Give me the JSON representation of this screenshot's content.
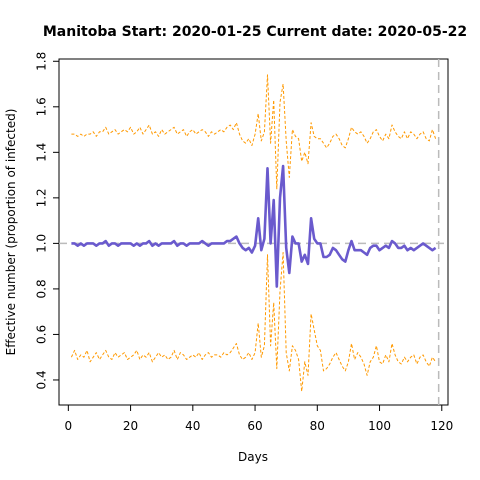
{
  "chart_data": {
    "type": "line",
    "title": "Manitoba Start:  2020-01-25   Current date:  2020-05-22",
    "xlabel": "Days",
    "ylabel": "Effective number (proportion of infected)",
    "xlim": [
      -3,
      122
    ],
    "ylim": [
      0.29,
      1.81
    ],
    "x_ticks": [
      0,
      20,
      40,
      60,
      80,
      100,
      120
    ],
    "y_ticks": [
      0.4,
      0.6,
      0.8,
      1.0,
      1.2,
      1.4,
      1.6,
      1.8
    ],
    "grid": false,
    "reference_line_y": 1.0,
    "current_day_line_x": 119,
    "colors": {
      "estimate": "#6a5acd",
      "bounds": "#ff9900",
      "reference": "#bbbbbb"
    },
    "series": [
      {
        "x": [
          1,
          2,
          3,
          4,
          5,
          6,
          7,
          8,
          9,
          10,
          11,
          12,
          13,
          14,
          15,
          16,
          17,
          18,
          19,
          20,
          21,
          22,
          23,
          24,
          25,
          26,
          27,
          28,
          29,
          30,
          31,
          32,
          33,
          34,
          35,
          36,
          37,
          38,
          39,
          40,
          41,
          42,
          43,
          44,
          45,
          46,
          47,
          48,
          49,
          50,
          51,
          52,
          53,
          54,
          55,
          56,
          57,
          58,
          59,
          60,
          61,
          62,
          63,
          64,
          65,
          66,
          67,
          68,
          69,
          70,
          71,
          72,
          73,
          74,
          75,
          76,
          77,
          78,
          79,
          80,
          81,
          82,
          83,
          84,
          85,
          86,
          87,
          88,
          89,
          90,
          91,
          92,
          93,
          94,
          95,
          96,
          97,
          98,
          99,
          100,
          101,
          102,
          103,
          104,
          105,
          106,
          107,
          108,
          109,
          110,
          111,
          112,
          113,
          114,
          115,
          116,
          117,
          118
        ],
        "values": [
          1.0,
          1.0,
          0.99,
          1.0,
          0.99,
          1.0,
          1.0,
          1.0,
          0.99,
          1.0,
          1.0,
          1.01,
          0.99,
          1.0,
          1.0,
          0.99,
          1.0,
          1.0,
          1.0,
          1.0,
          0.99,
          1.0,
          0.99,
          1.0,
          1.0,
          1.01,
          0.99,
          1.0,
          0.99,
          1.0,
          1.0,
          1.0,
          1.0,
          1.01,
          0.99,
          1.0,
          1.0,
          0.99,
          1.0,
          1.0,
          1.0,
          1.0,
          1.01,
          1.0,
          0.99,
          1.0,
          1.0,
          1.0,
          1.0,
          1.0,
          1.01,
          1.01,
          1.02,
          1.03,
          1.0,
          0.98,
          0.97,
          0.98,
          0.96,
          0.99,
          1.11,
          0.97,
          1.02,
          1.33,
          1.0,
          1.19,
          0.81,
          1.2,
          1.34,
          0.98,
          0.87,
          1.03,
          1.0,
          1.0,
          0.92,
          0.95,
          0.91,
          1.11,
          1.02,
          1.0,
          1.0,
          0.94,
          0.94,
          0.95,
          0.98,
          0.97,
          0.95,
          0.93,
          0.92,
          0.97,
          1.01,
          0.97,
          0.97,
          0.97,
          0.96,
          0.95,
          0.98,
          0.99,
          0.99,
          0.97,
          0.98,
          0.99,
          0.98,
          1.01,
          1.0,
          0.98,
          0.98,
          0.99,
          0.97,
          0.98,
          0.97,
          0.98,
          0.99,
          1.0,
          0.99,
          0.98,
          0.97,
          0.98
        ]
      },
      {
        "x": [
          1,
          2,
          3,
          4,
          5,
          6,
          7,
          8,
          9,
          10,
          11,
          12,
          13,
          14,
          15,
          16,
          17,
          18,
          19,
          20,
          21,
          22,
          23,
          24,
          25,
          26,
          27,
          28,
          29,
          30,
          31,
          32,
          33,
          34,
          35,
          36,
          37,
          38,
          39,
          40,
          41,
          42,
          43,
          44,
          45,
          46,
          47,
          48,
          49,
          50,
          51,
          52,
          53,
          54,
          55,
          56,
          57,
          58,
          59,
          60,
          61,
          62,
          63,
          64,
          65,
          66,
          67,
          68,
          69,
          70,
          71,
          72,
          73,
          74,
          75,
          76,
          77,
          78,
          79,
          80,
          81,
          82,
          83,
          84,
          85,
          86,
          87,
          88,
          89,
          90,
          91,
          92,
          93,
          94,
          95,
          96,
          97,
          98,
          99,
          100,
          101,
          102,
          103,
          104,
          105,
          106,
          107,
          108,
          109,
          110,
          111,
          112,
          113,
          114,
          115,
          116,
          117,
          118
        ],
        "values": [
          1.48,
          1.48,
          1.47,
          1.48,
          1.47,
          1.48,
          1.48,
          1.49,
          1.47,
          1.49,
          1.49,
          1.51,
          1.48,
          1.49,
          1.5,
          1.48,
          1.49,
          1.5,
          1.49,
          1.51,
          1.48,
          1.49,
          1.51,
          1.48,
          1.5,
          1.52,
          1.48,
          1.49,
          1.47,
          1.5,
          1.48,
          1.49,
          1.5,
          1.51,
          1.48,
          1.49,
          1.5,
          1.47,
          1.49,
          1.5,
          1.48,
          1.49,
          1.5,
          1.49,
          1.47,
          1.49,
          1.48,
          1.49,
          1.5,
          1.49,
          1.51,
          1.52,
          1.5,
          1.53,
          1.48,
          1.45,
          1.44,
          1.46,
          1.43,
          1.48,
          1.57,
          1.45,
          1.49,
          1.74,
          1.44,
          1.63,
          1.24,
          1.62,
          1.7,
          1.45,
          1.29,
          1.5,
          1.47,
          1.46,
          1.36,
          1.4,
          1.35,
          1.53,
          1.47,
          1.46,
          1.46,
          1.44,
          1.42,
          1.44,
          1.47,
          1.48,
          1.46,
          1.43,
          1.42,
          1.46,
          1.51,
          1.49,
          1.48,
          1.49,
          1.47,
          1.44,
          1.46,
          1.49,
          1.5,
          1.47,
          1.45,
          1.48,
          1.46,
          1.52,
          1.49,
          1.47,
          1.46,
          1.49,
          1.46,
          1.49,
          1.48,
          1.46,
          1.48,
          1.49,
          1.46,
          1.45,
          1.5,
          1.46
        ]
      },
      {
        "x": [
          1,
          2,
          3,
          4,
          5,
          6,
          7,
          8,
          9,
          10,
          11,
          12,
          13,
          14,
          15,
          16,
          17,
          18,
          19,
          20,
          21,
          22,
          23,
          24,
          25,
          26,
          27,
          28,
          29,
          30,
          31,
          32,
          33,
          34,
          35,
          36,
          37,
          38,
          39,
          40,
          41,
          42,
          43,
          44,
          45,
          46,
          47,
          48,
          49,
          50,
          51,
          52,
          53,
          54,
          55,
          56,
          57,
          58,
          59,
          60,
          61,
          62,
          63,
          64,
          65,
          66,
          67,
          68,
          69,
          70,
          71,
          72,
          73,
          74,
          75,
          76,
          77,
          78,
          79,
          80,
          81,
          82,
          83,
          84,
          85,
          86,
          87,
          88,
          89,
          90,
          91,
          92,
          93,
          94,
          95,
          96,
          97,
          98,
          99,
          100,
          101,
          102,
          103,
          104,
          105,
          106,
          107,
          108,
          109,
          110,
          111,
          112,
          113,
          114,
          115,
          116,
          117,
          118
        ],
        "values": [
          0.5,
          0.53,
          0.49,
          0.51,
          0.5,
          0.53,
          0.48,
          0.5,
          0.52,
          0.49,
          0.51,
          0.53,
          0.5,
          0.49,
          0.52,
          0.5,
          0.51,
          0.52,
          0.49,
          0.5,
          0.51,
          0.53,
          0.49,
          0.51,
          0.5,
          0.52,
          0.48,
          0.5,
          0.52,
          0.5,
          0.51,
          0.49,
          0.5,
          0.53,
          0.49,
          0.52,
          0.51,
          0.49,
          0.5,
          0.51,
          0.5,
          0.52,
          0.49,
          0.51,
          0.52,
          0.5,
          0.51,
          0.51,
          0.5,
          0.52,
          0.51,
          0.52,
          0.54,
          0.56,
          0.51,
          0.49,
          0.5,
          0.52,
          0.49,
          0.52,
          0.65,
          0.5,
          0.55,
          0.95,
          0.55,
          0.74,
          0.45,
          0.79,
          0.96,
          0.52,
          0.44,
          0.55,
          0.53,
          0.49,
          0.35,
          0.48,
          0.42,
          0.69,
          0.62,
          0.55,
          0.53,
          0.44,
          0.45,
          0.47,
          0.5,
          0.52,
          0.49,
          0.46,
          0.44,
          0.48,
          0.56,
          0.49,
          0.52,
          0.5,
          0.47,
          0.42,
          0.48,
          0.5,
          0.55,
          0.48,
          0.47,
          0.51,
          0.48,
          0.56,
          0.51,
          0.48,
          0.47,
          0.5,
          0.48,
          0.5,
          0.51,
          0.47,
          0.5,
          0.51,
          0.48,
          0.46,
          0.5,
          0.48
        ]
      }
    ]
  }
}
